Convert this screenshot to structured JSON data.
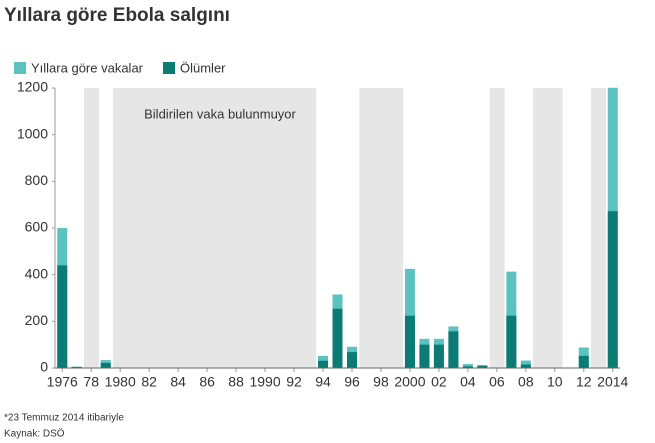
{
  "chart_data": {
    "type": "bar",
    "title": "Yıllara göre Ebola salgını",
    "annotation": "Bildirilen vaka bulunmuyor",
    "footnote": "*23 Temmuz 2014 itibariyle",
    "source": "Kaynak: DSÖ",
    "categories": [
      "1976",
      null,
      "78",
      null,
      "1980",
      null,
      "82",
      null,
      "84",
      null,
      "86",
      null,
      "88",
      null,
      "1990",
      null,
      "92",
      null,
      "94",
      null,
      "96",
      null,
      "98",
      null,
      "2000",
      null,
      "02",
      null,
      "04",
      null,
      "06",
      null,
      "08",
      null,
      "10",
      null,
      "12",
      null,
      "2014"
    ],
    "series": [
      {
        "name": "Yıllara göre vakalar",
        "color": "#5cc2c0",
        "values": [
          600,
          5,
          null,
          34,
          null,
          null,
          null,
          null,
          null,
          null,
          null,
          null,
          null,
          null,
          null,
          null,
          null,
          null,
          52,
          315,
          91,
          null,
          null,
          null,
          425,
          125,
          125,
          178,
          17,
          12,
          null,
          413,
          32,
          null,
          null,
          1,
          88,
          null,
          1201
        ]
      },
      {
        "name": "Ölümler",
        "color": "#0b7b73",
        "values": [
          440,
          5,
          null,
          22,
          null,
          null,
          null,
          null,
          null,
          null,
          null,
          null,
          null,
          null,
          null,
          null,
          null,
          null,
          31,
          254,
          68,
          null,
          null,
          null,
          224,
          100,
          100,
          157,
          7,
          10,
          null,
          224,
          15,
          null,
          null,
          1,
          52,
          null,
          672
        ]
      }
    ],
    "no_data_color": "#e6e6e6",
    "ylim": [
      0,
      1200
    ],
    "yticks": [
      0,
      200,
      400,
      600,
      800,
      1000,
      1200
    ]
  }
}
